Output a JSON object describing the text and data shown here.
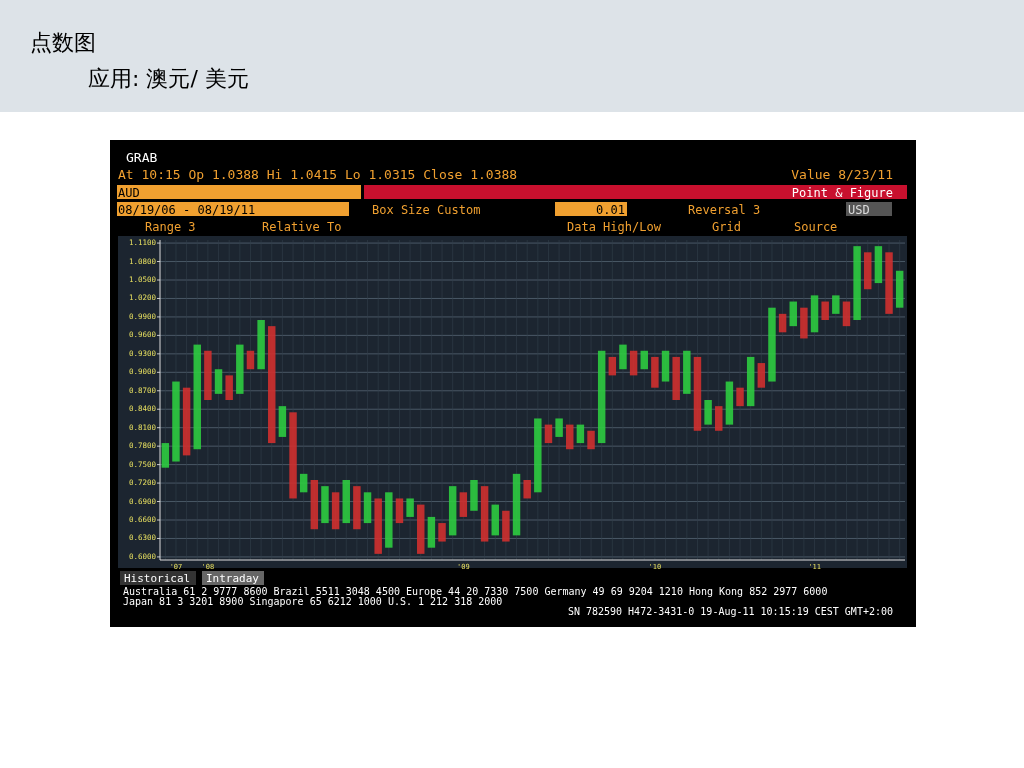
{
  "chart_data": {
    "type": "bar",
    "title": "点数图",
    "subtitle": "应用: 澳元/ 美元",
    "categories": [
      null,
      "'07",
      null,
      null,
      "'08",
      null,
      null,
      null,
      null,
      null,
      null,
      null,
      null,
      null,
      null,
      null,
      null,
      null,
      null,
      null,
      null,
      null,
      null,
      null,
      null,
      null,
      null,
      null,
      "'09",
      null,
      null,
      null,
      null,
      null,
      null,
      null,
      null,
      null,
      null,
      null,
      null,
      null,
      null,
      null,
      null,
      null,
      "'10",
      null,
      null,
      null,
      null,
      null,
      null,
      null,
      null,
      null,
      null,
      null,
      null,
      null,
      null,
      "'11",
      null,
      null,
      null,
      null,
      null,
      null,
      null,
      null
    ],
    "base": [
      0.745,
      0.755,
      0.765,
      0.775,
      0.855,
      0.865,
      0.855,
      0.865,
      0.905,
      0.905,
      0.785,
      0.795,
      0.695,
      0.705,
      0.645,
      0.655,
      0.645,
      0.655,
      0.645,
      0.655,
      0.605,
      0.615,
      0.655,
      0.665,
      0.605,
      0.615,
      0.625,
      0.635,
      0.665,
      0.675,
      0.625,
      0.635,
      0.625,
      0.635,
      0.695,
      0.705,
      0.785,
      0.795,
      0.775,
      0.785,
      0.775,
      0.785,
      0.895,
      0.905,
      0.895,
      0.905,
      0.875,
      0.885,
      0.855,
      0.865,
      0.805,
      0.815,
      0.805,
      0.815,
      0.845,
      0.845,
      0.875,
      0.885,
      0.965,
      0.975,
      0.955,
      0.965,
      0.985,
      0.995,
      0.975,
      0.985,
      1.035,
      1.045,
      0.995,
      1.005
    ],
    "values": [
      0.04,
      0.13,
      0.11,
      0.17,
      0.08,
      0.04,
      0.04,
      0.08,
      0.03,
      0.08,
      0.19,
      0.05,
      0.14,
      0.03,
      0.08,
      0.06,
      0.06,
      0.07,
      0.07,
      0.05,
      0.09,
      0.09,
      0.04,
      0.03,
      0.08,
      0.05,
      0.03,
      0.08,
      0.04,
      0.05,
      0.09,
      0.05,
      0.05,
      0.1,
      0.03,
      0.12,
      0.03,
      0.03,
      0.04,
      0.03,
      0.03,
      0.15,
      0.03,
      0.04,
      0.04,
      0.03,
      0.05,
      0.05,
      0.07,
      0.07,
      0.12,
      0.04,
      0.04,
      0.07,
      0.03,
      0.08,
      0.04,
      0.12,
      0.03,
      0.04,
      0.05,
      0.06,
      0.03,
      0.03,
      0.04,
      0.12,
      0.06,
      0.06,
      0.1,
      0.06
    ],
    "colors": [
      "#2ecc40",
      "#2ecc40",
      "#d0302f",
      "#2ecc40",
      "#d0302f",
      "#2ecc40",
      "#d0302f",
      "#2ecc40",
      "#d0302f",
      "#2ecc40",
      "#d0302f",
      "#2ecc40",
      "#d0302f",
      "#2ecc40",
      "#d0302f",
      "#2ecc40",
      "#d0302f",
      "#2ecc40",
      "#d0302f",
      "#2ecc40",
      "#d0302f",
      "#2ecc40",
      "#d0302f",
      "#2ecc40",
      "#d0302f",
      "#2ecc40",
      "#d0302f",
      "#2ecc40",
      "#d0302f",
      "#2ecc40",
      "#d0302f",
      "#2ecc40",
      "#d0302f",
      "#2ecc40",
      "#d0302f",
      "#2ecc40",
      "#d0302f",
      "#2ecc40",
      "#d0302f",
      "#2ecc40",
      "#d0302f",
      "#2ecc40",
      "#d0302f",
      "#2ecc40",
      "#d0302f",
      "#2ecc40",
      "#d0302f",
      "#2ecc40",
      "#d0302f",
      "#2ecc40",
      "#d0302f",
      "#2ecc40",
      "#d0302f",
      "#2ecc40",
      "#d0302f",
      "#2ecc40",
      "#d0302f",
      "#2ecc40",
      "#d0302f",
      "#2ecc40",
      "#d0302f",
      "#2ecc40",
      "#d0302f",
      "#2ecc40",
      "#d0302f",
      "#2ecc40",
      "#d0302f",
      "#2ecc40",
      "#d0302f",
      "#2ecc40"
    ],
    "ylim": [
      0.595,
      1.115
    ],
    "yticks": [
      {
        "value": 0.6,
        "label": "0.6000"
      },
      {
        "value": 0.63,
        "label": "0.6300"
      },
      {
        "value": 0.66,
        "label": "0.6600"
      },
      {
        "value": 0.69,
        "label": "0.6900"
      },
      {
        "value": 0.72,
        "label": "0.7200"
      },
      {
        "value": 0.75,
        "label": "0.7500"
      },
      {
        "value": 0.78,
        "label": "0.7800"
      },
      {
        "value": 0.81,
        "label": "0.8100"
      },
      {
        "value": 0.84,
        "label": "0.8400"
      },
      {
        "value": 0.87,
        "label": "0.8700"
      },
      {
        "value": 0.9,
        "label": "0.9000"
      },
      {
        "value": 0.93,
        "label": "0.9300"
      },
      {
        "value": 0.96,
        "label": "0.9600"
      },
      {
        "value": 0.99,
        "label": "0.9900"
      },
      {
        "value": 1.02,
        "label": "1.0200"
      },
      {
        "value": 1.05,
        "label": "1.0500"
      },
      {
        "value": 1.08,
        "label": "1.0800"
      },
      {
        "value": 1.11,
        "label": "1.1100"
      }
    ],
    "grid": true,
    "annotations": [
      "GRAB",
      "At 10:15 Op 1.0388 Hi 1.0415 Lo 1.0315 Close 1.0388",
      "Value 8/23/11",
      "AUD",
      "Point & Figure",
      "08/19/06 - 08/19/11",
      "Box Size Custom",
      "0.01",
      "Reversal 3",
      "USD",
      "Range 3",
      "Relative To",
      "Data High/Low",
      "Grid",
      "Source",
      "Historical",
      "Intraday",
      "Australia 61 2 9777 8600 Brazil 5511 3048 4500 Europe 44 20 7330 7500 Germany 49 69 9204 1210 Hong Kong 852 2977 6000",
      "Japan 81 3 3201 8900 Singapore 65 6212 1000 U.S. 1 212 318 2000",
      "SN 782590 H472-3431-0 19-Aug-11 10:15:19 CEST GMT+2:00"
    ]
  }
}
